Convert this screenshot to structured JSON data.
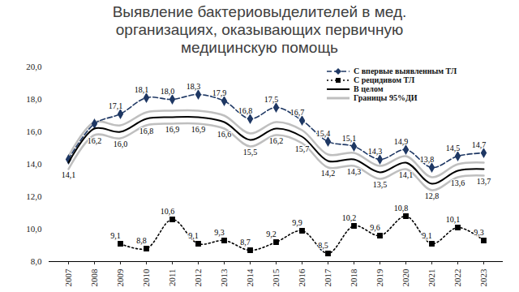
{
  "chart_data": {
    "type": "line",
    "title": "Выявление бактериовыделителей в мед.\nорганизациях, оказывающих первичную\nмедицинскую помощь",
    "categories": [
      "2007",
      "2008",
      "2009",
      "2010",
      "2011",
      "2012",
      "2013",
      "2014",
      "2015",
      "2016",
      "2017",
      "2018",
      "2019",
      "2020",
      "2021",
      "2022",
      "2023"
    ],
    "ylim": [
      8,
      20
    ],
    "yticks": [
      {
        "value": 8,
        "label": "8,0"
      },
      {
        "value": 10,
        "label": "10,0"
      },
      {
        "value": 12,
        "label": "12,0"
      },
      {
        "value": 14,
        "label": "14,0"
      },
      {
        "value": 16,
        "label": "16,0"
      },
      {
        "value": 18,
        "label": "18,0"
      },
      {
        "value": 20,
        "label": "20,0"
      }
    ],
    "grid": false,
    "data_labels": true,
    "legend": "top-right",
    "series": [
      {
        "name": "С впервые выявленным ТЛ",
        "color": "#1f3864",
        "line_style": "dashed",
        "marker": "diamond",
        "values": [
          14.3,
          16.5,
          17.1,
          18.1,
          18.0,
          18.3,
          17.9,
          16.8,
          17.5,
          16.7,
          15.4,
          15.1,
          14.3,
          14.9,
          13.8,
          14.5,
          14.7
        ],
        "value_labels": [
          null,
          null,
          "17,1",
          "18,1",
          "18,0",
          "18,3",
          "17,9",
          "16,8",
          "17,5",
          "16,7",
          "15,4",
          "15,1",
          "14,3",
          "14,9",
          "13,8",
          "14,5",
          "14,7"
        ]
      },
      {
        "name": "С рецидивом ТЛ",
        "color": "#000000",
        "line_style": "dotted",
        "marker": "square",
        "values": [
          null,
          null,
          9.1,
          8.8,
          10.6,
          9.1,
          9.3,
          8.7,
          9.2,
          9.9,
          8.5,
          10.2,
          9.6,
          10.8,
          9.1,
          10.1,
          9.3
        ],
        "value_labels": [
          null,
          null,
          "9,1",
          "8,8",
          "10,6",
          "9,1",
          "9,3",
          "8,7",
          "9,2",
          "9,9",
          "8,5",
          "10,2",
          "9,6",
          "10,8",
          "9,1",
          "10,1",
          "9,3"
        ]
      },
      {
        "name": "В целом",
        "color": "#000000",
        "line_style": "solid",
        "values": [
          14.1,
          16.2,
          16.0,
          16.8,
          16.9,
          16.9,
          16.6,
          15.5,
          16.2,
          15.7,
          14.2,
          14.3,
          13.5,
          14.1,
          12.8,
          13.6,
          13.7
        ],
        "value_labels": [
          "14,1",
          "16,2",
          "16,0",
          "16,8",
          "16,9",
          "16,9",
          "16,6",
          "15,5",
          "16,2",
          "15,7",
          "14,2",
          "14,3",
          "13,5",
          "14,1",
          "12,8",
          "13,6",
          "13,7"
        ]
      },
      {
        "name": "Границы 95%ДИ",
        "color": "#bfbfbf",
        "type": "band",
        "line_style": "solid",
        "lower": [
          13.7,
          15.8,
          15.6,
          16.4,
          16.5,
          16.5,
          16.2,
          15.1,
          15.8,
          15.3,
          13.8,
          13.9,
          13.1,
          13.7,
          12.4,
          13.2,
          13.3
        ],
        "upper": [
          14.5,
          16.6,
          16.4,
          17.2,
          17.3,
          17.3,
          17.0,
          15.9,
          16.6,
          16.1,
          14.6,
          14.7,
          13.9,
          14.5,
          13.2,
          14.0,
          14.1
        ]
      }
    ]
  }
}
